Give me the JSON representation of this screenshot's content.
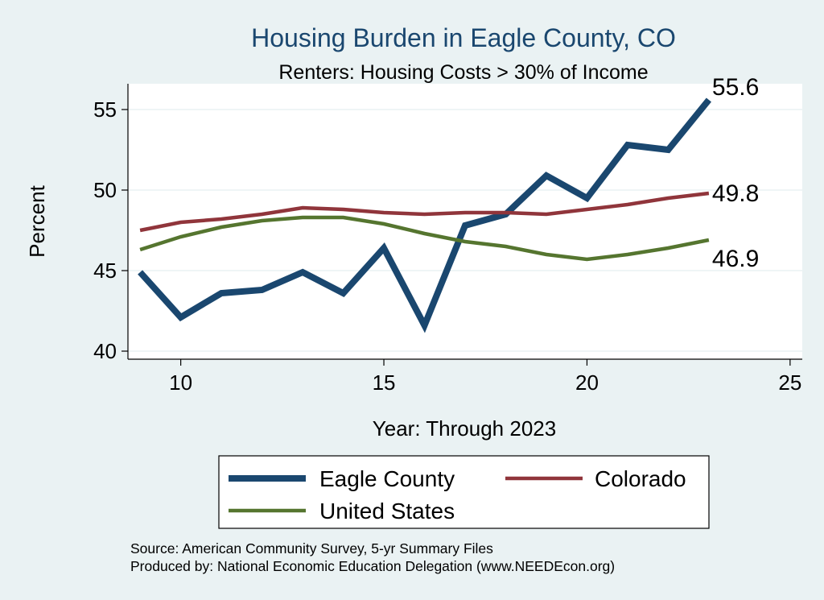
{
  "chart_data": {
    "type": "line",
    "title": "Housing Burden in Eagle County, CO",
    "subtitle": "Renters: Housing Costs > 30% of Income",
    "xlabel": "Year: Through 2023",
    "ylabel": "Percent",
    "xlim": [
      8.7,
      25.3
    ],
    "ylim": [
      39.5,
      56.6
    ],
    "x_ticks": [
      10,
      15,
      20,
      25
    ],
    "y_ticks": [
      40,
      45,
      50,
      55
    ],
    "grid": true,
    "legend_position": "bottom",
    "x": [
      9,
      10,
      11,
      12,
      13,
      14,
      15,
      16,
      17,
      18,
      19,
      20,
      21,
      22,
      23
    ],
    "series": [
      {
        "name": "Eagle County",
        "color": "#1a476f",
        "values": [
          44.9,
          42.1,
          43.6,
          43.8,
          44.9,
          43.6,
          46.4,
          41.6,
          47.8,
          48.5,
          50.9,
          49.5,
          52.8,
          52.5,
          55.6
        ],
        "end_label": "55.6"
      },
      {
        "name": "Colorado",
        "color": "#90353b",
        "values": [
          47.5,
          48.0,
          48.2,
          48.5,
          48.9,
          48.8,
          48.6,
          48.5,
          48.6,
          48.6,
          48.5,
          48.8,
          49.1,
          49.5,
          49.8
        ],
        "end_label": "49.8"
      },
      {
        "name": "United States",
        "color": "#55752f",
        "values": [
          46.3,
          47.1,
          47.7,
          48.1,
          48.3,
          48.3,
          47.9,
          47.3,
          46.8,
          46.5,
          46.0,
          45.7,
          46.0,
          46.4,
          46.9
        ],
        "end_label": "46.9"
      }
    ]
  },
  "notes": {
    "source": "Source: American Community Survey, 5-yr Summary Files",
    "produced_by": "Produced by: National Economic Education Delegation (www.NEEDEcon.org)"
  }
}
